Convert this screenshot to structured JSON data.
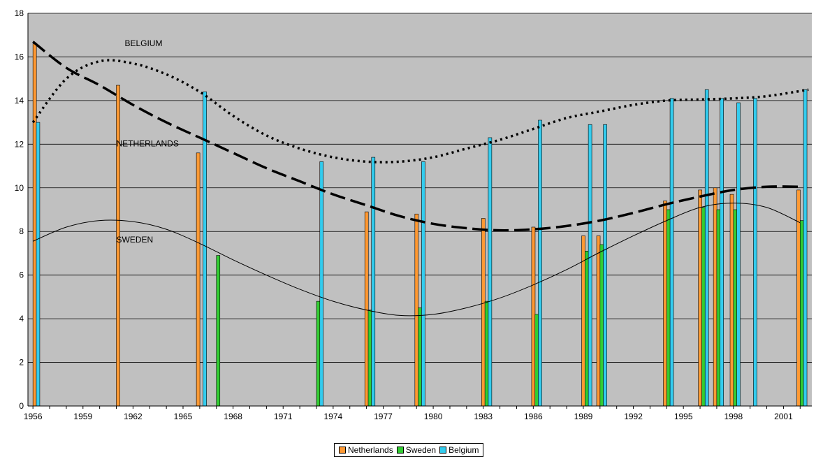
{
  "chart_data": {
    "type": "bar",
    "ylim": [
      0,
      18
    ],
    "xlim": [
      1955.7,
      2002.7
    ],
    "yticks": [
      0,
      2,
      4,
      6,
      8,
      10,
      12,
      14,
      16,
      18
    ],
    "xticks": [
      "1956",
      "1959",
      "1962",
      "1965",
      "1968",
      "1971",
      "1974",
      "1977",
      "1980",
      "1983",
      "1986",
      "1989",
      "1992",
      "1995",
      "1998",
      "2001"
    ],
    "grid": true,
    "legend_position": "bottom",
    "colors": {
      "plot_background": "#c0c0c0",
      "Netherlands": "#ff9933",
      "Sweden": "#33cc33",
      "Belgium": "#33ccee"
    },
    "series": [
      {
        "name": "Netherlands",
        "points": [
          [
            1956.0,
            16.6
          ],
          [
            1961.0,
            14.7
          ],
          [
            1965.8,
            11.6
          ],
          [
            1975.9,
            8.9
          ],
          [
            1978.9,
            8.8
          ],
          [
            1982.9,
            8.6
          ],
          [
            1985.9,
            8.2
          ],
          [
            1988.9,
            7.8
          ],
          [
            1989.8,
            7.8
          ],
          [
            1993.8,
            9.4
          ],
          [
            1995.9,
            9.9
          ],
          [
            1996.8,
            10.0
          ],
          [
            1997.8,
            9.7
          ],
          [
            2001.8,
            9.9
          ]
        ]
      },
      {
        "name": "Sweden",
        "points": [
          [
            1967.0,
            6.9
          ],
          [
            1973.0,
            4.8
          ],
          [
            1976.1,
            4.4
          ],
          [
            1979.1,
            4.5
          ],
          [
            1983.1,
            4.8
          ],
          [
            1986.1,
            4.2
          ],
          [
            1989.1,
            7.1
          ],
          [
            1990.0,
            7.4
          ],
          [
            1994.0,
            9.0
          ],
          [
            1996.1,
            9.1
          ],
          [
            1997.0,
            9.0
          ],
          [
            1998.0,
            9.0
          ],
          [
            2002.0,
            8.5
          ]
        ]
      },
      {
        "name": "Belgium",
        "points": [
          [
            1956.2,
            13.0
          ],
          [
            1966.2,
            14.4
          ],
          [
            1973.2,
            11.2
          ],
          [
            1976.3,
            11.4
          ],
          [
            1979.3,
            11.2
          ],
          [
            1983.3,
            12.3
          ],
          [
            1986.3,
            13.1
          ],
          [
            1989.3,
            12.9
          ],
          [
            1990.2,
            12.9
          ],
          [
            1994.2,
            14.1
          ],
          [
            1996.3,
            14.5
          ],
          [
            1997.2,
            14.1
          ],
          [
            1998.2,
            13.9
          ],
          [
            1999.2,
            14.1
          ],
          [
            2002.2,
            14.5
          ]
        ]
      }
    ],
    "trendlines": [
      {
        "series": "Belgium",
        "style": "dotted",
        "points": [
          [
            1956,
            13.0
          ],
          [
            1958,
            15.0
          ],
          [
            1960,
            15.8
          ],
          [
            1962,
            15.7
          ],
          [
            1964,
            15.2
          ],
          [
            1966,
            14.4
          ],
          [
            1968,
            13.3
          ],
          [
            1970,
            12.4
          ],
          [
            1972,
            11.8
          ],
          [
            1974,
            11.4
          ],
          [
            1976,
            11.2
          ],
          [
            1978,
            11.2
          ],
          [
            1980,
            11.4
          ],
          [
            1982,
            11.8
          ],
          [
            1984,
            12.2
          ],
          [
            1986,
            12.7
          ],
          [
            1988,
            13.2
          ],
          [
            1990,
            13.5
          ],
          [
            1992,
            13.8
          ],
          [
            1994,
            14.0
          ],
          [
            1996,
            14.05
          ],
          [
            1998,
            14.1
          ],
          [
            2000,
            14.2
          ],
          [
            2002.5,
            14.5
          ]
        ]
      },
      {
        "series": "Netherlands",
        "style": "dashed",
        "points": [
          [
            1956,
            16.7
          ],
          [
            1958,
            15.5
          ],
          [
            1960,
            14.7
          ],
          [
            1962,
            13.8
          ],
          [
            1964,
            13.0
          ],
          [
            1966,
            12.3
          ],
          [
            1968,
            11.6
          ],
          [
            1970,
            10.9
          ],
          [
            1972,
            10.3
          ],
          [
            1974,
            9.7
          ],
          [
            1976,
            9.2
          ],
          [
            1978,
            8.7
          ],
          [
            1980,
            8.35
          ],
          [
            1982,
            8.15
          ],
          [
            1984,
            8.05
          ],
          [
            1986,
            8.1
          ],
          [
            1988,
            8.25
          ],
          [
            1990,
            8.5
          ],
          [
            1992,
            8.85
          ],
          [
            1994,
            9.25
          ],
          [
            1996,
            9.6
          ],
          [
            1998,
            9.9
          ],
          [
            2000,
            10.05
          ],
          [
            2002,
            10.05
          ]
        ]
      },
      {
        "series": "Sweden",
        "style": "solid",
        "points": [
          [
            1956,
            7.55
          ],
          [
            1958,
            8.2
          ],
          [
            1960,
            8.5
          ],
          [
            1962,
            8.45
          ],
          [
            1964,
            8.1
          ],
          [
            1966,
            7.45
          ],
          [
            1968,
            6.7
          ],
          [
            1970,
            6.0
          ],
          [
            1972,
            5.35
          ],
          [
            1974,
            4.8
          ],
          [
            1976,
            4.4
          ],
          [
            1978,
            4.15
          ],
          [
            1980,
            4.2
          ],
          [
            1982,
            4.5
          ],
          [
            1984,
            4.95
          ],
          [
            1986,
            5.55
          ],
          [
            1988,
            6.25
          ],
          [
            1990,
            7.05
          ],
          [
            1992,
            7.8
          ],
          [
            1994,
            8.5
          ],
          [
            1996,
            9.1
          ],
          [
            1998,
            9.3
          ],
          [
            2000,
            9.1
          ],
          [
            2002,
            8.4
          ]
        ]
      }
    ],
    "annotations": [
      {
        "text": "BELGIUM",
        "x": 1961.5,
        "y": 16.5
      },
      {
        "text": "NETHERLANDS",
        "x": 1961.0,
        "y": 11.9
      },
      {
        "text": "SWEDEN",
        "x": 1961.0,
        "y": 7.5
      }
    ]
  }
}
